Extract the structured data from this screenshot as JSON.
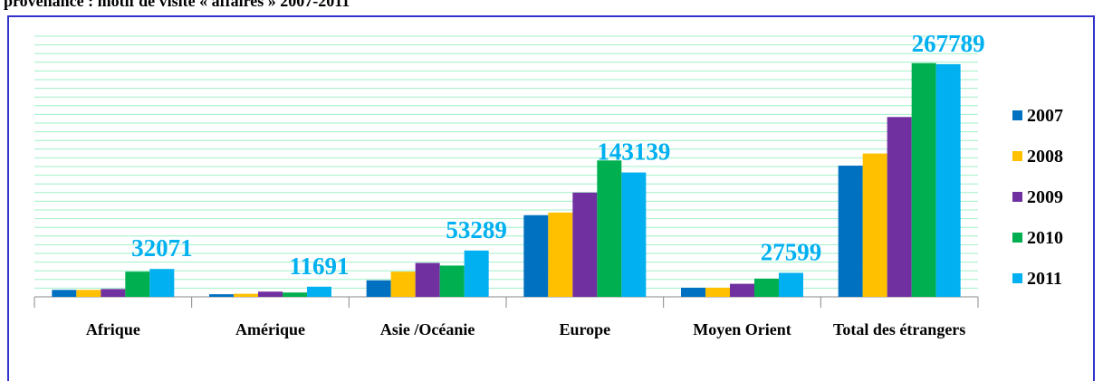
{
  "chart_data": {
    "type": "bar",
    "title": "provenance : motif de visite « affaires » 2007-2011",
    "categories": [
      "Afrique",
      "Amérique",
      "Asie /Océanie",
      "Europe",
      "Moyen Orient",
      "Total des étrangers"
    ],
    "series": [
      {
        "name": "2007",
        "color": "#0070c0",
        "values": [
          8000,
          3000,
          19000,
          94000,
          10500,
          151000
        ]
      },
      {
        "name": "2008",
        "color": "#ffc000",
        "values": [
          8000,
          3500,
          29000,
          97000,
          10500,
          165000
        ]
      },
      {
        "name": "2009",
        "color": "#7030a0",
        "values": [
          9000,
          6000,
          39000,
          120000,
          15000,
          207000
        ]
      },
      {
        "name": "2010",
        "color": "#00b050",
        "values": [
          29000,
          5000,
          36000,
          157000,
          21000,
          269000
        ]
      },
      {
        "name": "2011",
        "color": "#00b0f0",
        "values": [
          32071,
          11691,
          53289,
          143139,
          27599,
          267789
        ],
        "show_values": true
      }
    ],
    "ylim": [
      0,
      300000
    ],
    "yticks": [
      0,
      10000,
      20000,
      30000,
      40000,
      50000,
      60000,
      70000,
      80000,
      90000,
      100000,
      110000,
      120000,
      130000,
      140000,
      150000,
      160000,
      170000,
      180000,
      190000,
      200000,
      210000,
      220000,
      230000,
      240000,
      250000,
      260000,
      270000,
      280000,
      290000,
      300000
    ],
    "grid": true,
    "legend": "right"
  }
}
